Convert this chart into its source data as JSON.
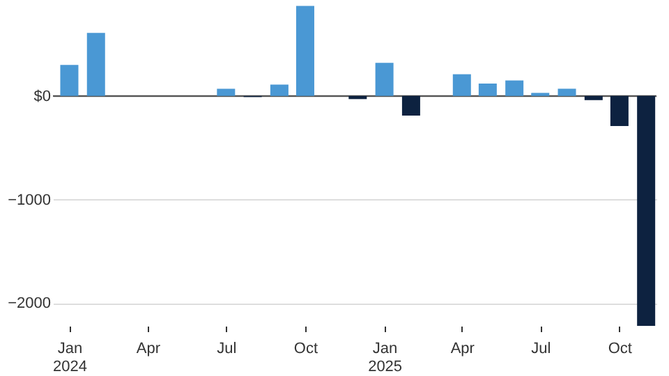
{
  "chart_data": {
    "type": "bar",
    "x": [
      "2024-01",
      "2024-02",
      "2024-03",
      "2024-04",
      "2024-05",
      "2024-06",
      "2024-07",
      "2024-08",
      "2024-09",
      "2024-10",
      "2024-11",
      "2024-12",
      "2025-01",
      "2025-02",
      "2025-03",
      "2025-04",
      "2025-05",
      "2025-06",
      "2025-07",
      "2025-08",
      "2025-09",
      "2025-10",
      "2025-11"
    ],
    "values": [
      300,
      610,
      null,
      null,
      null,
      null,
      70,
      -10,
      110,
      870,
      null,
      -30,
      320,
      -190,
      null,
      210,
      120,
      150,
      30,
      70,
      -40,
      -290,
      -2220
    ],
    "colors": [
      "#4a98d4",
      "#4a98d4",
      "#4a98d4",
      "#4a98d4",
      "#4a98d4",
      "#4a98d4",
      "#4a98d4",
      "#0d2240",
      "#4a98d4",
      "#4a98d4",
      "#4a98d4",
      "#0d2240",
      "#4a98d4",
      "#0d2240",
      "#4a98d4",
      "#4a98d4",
      "#4a98d4",
      "#4a98d4",
      "#4a98d4",
      "#4a98d4",
      "#0d2240",
      "#0d2240",
      "#0d2240"
    ],
    "xlim": [
      "2023-12-13",
      "2025-11-13"
    ],
    "xticks": [
      {
        "value": "2024-01",
        "label": "Jan 2024"
      },
      {
        "value": "2024-04",
        "label": "Apr"
      },
      {
        "value": "2024-07",
        "label": "Jul"
      },
      {
        "value": "2024-10",
        "label": "Oct"
      },
      {
        "value": "2025-01",
        "label": "Jan 2025"
      },
      {
        "value": "2025-04",
        "label": "Apr"
      },
      {
        "value": "2025-07",
        "label": "Jul"
      },
      {
        "value": "2025-10",
        "label": "Oct"
      }
    ],
    "ylim": [
      -2220,
      900
    ],
    "yticks": [
      {
        "value": 0,
        "label": "$0"
      },
      {
        "value": -1000,
        "label": "−1000"
      },
      {
        "value": -2000,
        "label": "−2000"
      }
    ],
    "grid": "y",
    "ref_lines": [
      {
        "axis": "y",
        "value": 0,
        "color": "#555555"
      }
    ]
  }
}
